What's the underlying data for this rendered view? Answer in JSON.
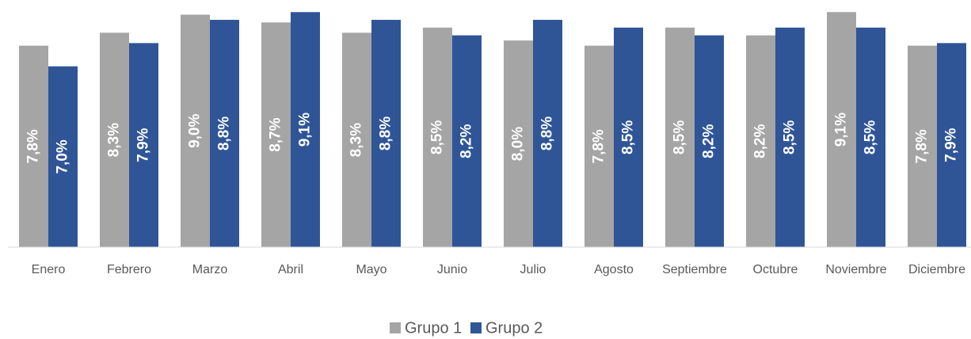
{
  "chart_data": {
    "type": "bar",
    "categories": [
      "Enero",
      "Febrero",
      "Marzo",
      "Abril",
      "Mayo",
      "Junio",
      "Julio",
      "Agosto",
      "Septiembre",
      "Octubre",
      "Noviembre",
      "Diciembre"
    ],
    "series": [
      {
        "name": "Grupo 1",
        "color": "#a5a5a5",
        "values": [
          7.8,
          8.3,
          9.0,
          8.7,
          8.3,
          8.5,
          8.0,
          7.8,
          8.5,
          8.2,
          9.1,
          7.8
        ],
        "value_labels": [
          "7,8%",
          "8,3%",
          "9,0%",
          "8,7%",
          "8,3%",
          "8,5%",
          "8,0%",
          "7,8%",
          "8,5%",
          "8,2%",
          "9,1%",
          "7,8%"
        ]
      },
      {
        "name": "Grupo 2",
        "color": "#2f5597",
        "values": [
          7.0,
          7.9,
          8.8,
          9.1,
          8.8,
          8.2,
          8.8,
          8.5,
          8.2,
          8.5,
          8.5,
          7.9
        ],
        "value_labels": [
          "7,0%",
          "7,9%",
          "8,8%",
          "9,1%",
          "8,8%",
          "8,2%",
          "8,8%",
          "8,5%",
          "8,2%",
          "8,5%",
          "8,5%",
          "7,9%"
        ]
      }
    ],
    "ylim": [
      0,
      9.2
    ],
    "legend": "bottom"
  }
}
